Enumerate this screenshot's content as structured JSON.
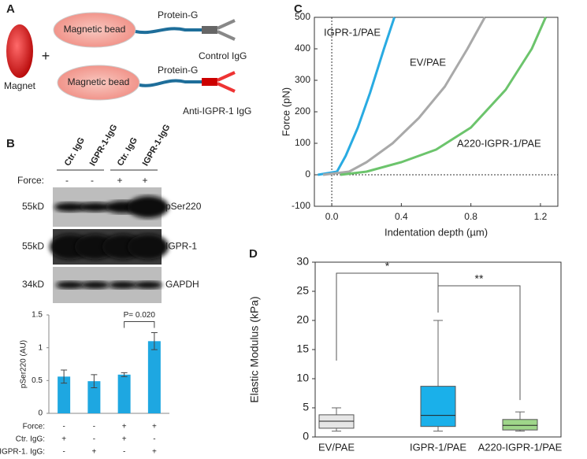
{
  "panel_labels": [
    "A",
    "B",
    "C",
    "D"
  ],
  "diagram": {
    "magnet": "Magnet",
    "plus": "+",
    "control": {
      "bead": "Magnetic bead",
      "linker": "Protein-G",
      "antibody": "Control IgG"
    },
    "anti": {
      "bead": "Magnetic bead",
      "linker": "Protein-G",
      "antibody": "Anti-IGPR-1 IgG"
    }
  },
  "blot": {
    "lanes": [
      "Ctr. IgG",
      "IGPR-1-IgG",
      "Ctr. IgG",
      "IGPR-1-IgG"
    ],
    "force_label": "Force:",
    "force": [
      "-",
      "-",
      "+",
      "+"
    ],
    "strips": [
      {
        "marker": "55kD",
        "label": "pSer220"
      },
      {
        "marker": "55kD",
        "label": "IGPR-1"
      },
      {
        "marker": "34kD",
        "label": "GAPDH"
      }
    ]
  },
  "chart_data": [
    {
      "type": "bar",
      "ylabel": "pSer220 (AU)",
      "values": [
        0.56,
        0.49,
        0.59,
        1.1
      ],
      "errors": [
        0.1,
        0.1,
        0.03,
        0.13
      ],
      "color": "#1ea7e1",
      "ylim": [
        0,
        1.5
      ],
      "yticks": [
        0,
        0.5,
        1,
        1.5
      ],
      "annotation": "P= 0.020",
      "rows": [
        {
          "label": "Force:",
          "values": [
            "-",
            "-",
            "+",
            "+"
          ]
        },
        {
          "label": "Ctr. IgG:",
          "values": [
            "+",
            "-",
            "+",
            "-"
          ]
        },
        {
          "label": "IGPR-1. IgG:",
          "values": [
            "-",
            "+",
            "-",
            "+"
          ]
        }
      ]
    },
    {
      "type": "line",
      "xlabel": "Indentation depth (µm)",
      "ylabel": "Force (pN)",
      "xlim": [
        -0.1,
        1.3
      ],
      "ylim": [
        -100,
        500
      ],
      "xticks": [
        {
          "value": 0,
          "label": "0.0"
        },
        0.4,
        0.8,
        1.2
      ],
      "yticks": [
        -100,
        0,
        100,
        200,
        300,
        400,
        500
      ],
      "series": [
        {
          "name": "IGPR-1/PAE",
          "color": "#29abe2",
          "x": [
            -0.08,
            0.03,
            0.08,
            0.15,
            0.22,
            0.3,
            0.36
          ],
          "values": [
            0,
            10,
            60,
            150,
            260,
            400,
            500
          ]
        },
        {
          "name": "EV/PAE",
          "color": "#a9a9a9",
          "x": [
            -0.05,
            0.1,
            0.2,
            0.35,
            0.5,
            0.65,
            0.78,
            0.88
          ],
          "values": [
            0,
            10,
            40,
            100,
            180,
            280,
            400,
            500
          ]
        },
        {
          "name": "A220-IGPR-1/PAE",
          "color": "#6cc46c",
          "x": [
            0.05,
            0.2,
            0.4,
            0.6,
            0.8,
            1.0,
            1.15,
            1.23
          ],
          "values": [
            0,
            10,
            40,
            80,
            150,
            270,
            400,
            500
          ]
        }
      ]
    },
    {
      "type": "box",
      "ylabel": "Elastic Modulus (kPa)",
      "categories": [
        "EV/PAE",
        "IGPR-1/PAE",
        "A220-IGPR-1/PAE"
      ],
      "colors": [
        "#e6e6e6",
        "#1ab0ea",
        "#9fd68a"
      ],
      "boxes": [
        {
          "min": 1,
          "q1": 1.5,
          "median": 2.7,
          "q3": 3.8,
          "max": 5
        },
        {
          "min": 1,
          "q1": 1.8,
          "median": 3.7,
          "q3": 8.7,
          "max": 20
        },
        {
          "min": 1,
          "q1": 1.2,
          "median": 2,
          "q3": 3,
          "max": 4.3
        }
      ],
      "ylim": [
        0,
        30
      ],
      "yticks": [
        0,
        5,
        10,
        15,
        20,
        25,
        30
      ],
      "significance": [
        "*",
        "**"
      ]
    }
  ]
}
